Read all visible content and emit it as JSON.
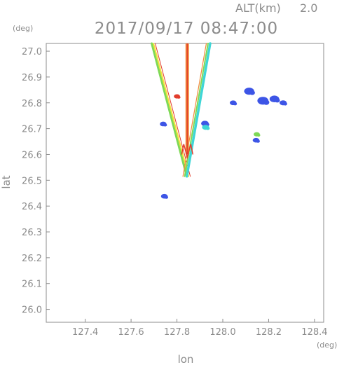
{
  "header": {
    "altitude_label": "ALT(km)",
    "altitude_value": "2.0",
    "timestamp": "2017/09/17 08:47:00"
  },
  "chart_data": {
    "type": "scatter",
    "title": "2017/09/17 08:47:00",
    "xlabel": "lon",
    "ylabel": "lat",
    "x_unit": "(deg)",
    "y_unit": "(deg)",
    "xlim": [
      127.23,
      128.44
    ],
    "ylim": [
      25.95,
      27.03
    ],
    "x_ticks": [
      127.4,
      127.6,
      127.8,
      128.0,
      128.2,
      128.4
    ],
    "x_tick_labels": [
      "127.4",
      "127.6",
      "127.8",
      "128.0",
      "128.2",
      "128.4"
    ],
    "y_ticks": [
      26.0,
      26.1,
      26.2,
      26.3,
      26.4,
      26.5,
      26.6,
      26.7,
      26.8,
      26.9,
      27.0
    ],
    "y_tick_labels": [
      "26.0",
      "26.1",
      "26.2",
      "26.3",
      "26.4",
      "26.5",
      "26.6",
      "26.7",
      "26.8",
      "26.9",
      "27.0"
    ],
    "grid": false,
    "colors": {
      "axis": "#8c8c8c",
      "echo_blue": "#3d55e6",
      "echo_cyan": "#3fd6d6",
      "echo_green": "#7ed957",
      "echo_yellow": "#f2e23c",
      "echo_orange": "#f08a3c",
      "echo_red": "#e23c2c"
    },
    "wedge": {
      "apex": [
        127.843,
        26.515
      ],
      "left_top": [
        127.69,
        27.03
      ],
      "right_top": [
        127.945,
        27.03
      ]
    },
    "center_beam": {
      "lon": 127.845,
      "lat_from": 26.6,
      "lat_to": 27.03
    },
    "echo_clusters": [
      {
        "lon": 128.115,
        "lat": 26.845,
        "size": 0.6,
        "color": "echo_blue"
      },
      {
        "lon": 128.175,
        "lat": 26.808,
        "size": 0.7,
        "color": "echo_blue"
      },
      {
        "lon": 128.225,
        "lat": 26.815,
        "size": 0.55,
        "color": "echo_blue"
      },
      {
        "lon": 128.263,
        "lat": 26.8,
        "size": 0.3,
        "color": "echo_blue"
      },
      {
        "lon": 128.045,
        "lat": 26.8,
        "size": 0.25,
        "color": "echo_blue"
      },
      {
        "lon": 128.145,
        "lat": 26.655,
        "size": 0.25,
        "color": "echo_blue"
      },
      {
        "lon": 128.148,
        "lat": 26.678,
        "size": 0.2,
        "color": "echo_green"
      },
      {
        "lon": 127.74,
        "lat": 26.718,
        "size": 0.25,
        "color": "echo_blue"
      },
      {
        "lon": 127.922,
        "lat": 26.72,
        "size": 0.35,
        "color": "echo_blue"
      },
      {
        "lon": 127.925,
        "lat": 26.705,
        "size": 0.3,
        "color": "echo_cyan"
      },
      {
        "lon": 127.745,
        "lat": 26.438,
        "size": 0.25,
        "color": "echo_blue"
      },
      {
        "lon": 127.8,
        "lat": 26.825,
        "size": 0.2,
        "color": "echo_red"
      }
    ]
  }
}
